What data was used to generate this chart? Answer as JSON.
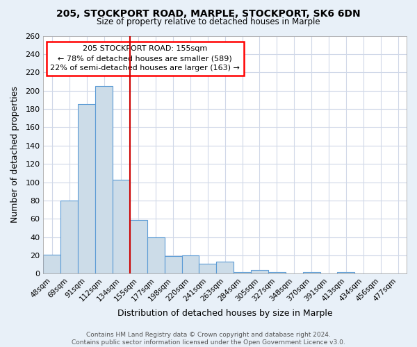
{
  "title1": "205, STOCKPORT ROAD, MARPLE, STOCKPORT, SK6 6DN",
  "title2": "Size of property relative to detached houses in Marple",
  "xlabel": "Distribution of detached houses by size in Marple",
  "ylabel": "Number of detached properties",
  "footer1": "Contains HM Land Registry data © Crown copyright and database right 2024.",
  "footer2": "Contains public sector information licensed under the Open Government Licence v3.0.",
  "bar_labels": [
    "48sqm",
    "69sqm",
    "91sqm",
    "112sqm",
    "134sqm",
    "155sqm",
    "177sqm",
    "198sqm",
    "220sqm",
    "241sqm",
    "263sqm",
    "284sqm",
    "305sqm",
    "327sqm",
    "348sqm",
    "370sqm",
    "391sqm",
    "413sqm",
    "434sqm",
    "456sqm",
    "477sqm"
  ],
  "bar_values": [
    21,
    80,
    185,
    205,
    103,
    59,
    40,
    19,
    20,
    11,
    13,
    2,
    4,
    2,
    0,
    2,
    0,
    2,
    0,
    0,
    0
  ],
  "bar_color": "#ccdce8",
  "bar_edgecolor": "#5b9bd5",
  "bg_color": "#e8f0f8",
  "plot_bg_color": "#ffffff",
  "grid_color": "#d0d8e8",
  "vline_color": "#cc0000",
  "vline_index": 5,
  "annotation_text": "205 STOCKPORT ROAD: 155sqm\n← 78% of detached houses are smaller (589)\n22% of semi-detached houses are larger (163) →",
  "annotation_box_facecolor": "white",
  "annotation_box_edgecolor": "red",
  "ylim": [
    0,
    260
  ],
  "yticks": [
    0,
    20,
    40,
    60,
    80,
    100,
    120,
    140,
    160,
    180,
    200,
    220,
    240,
    260
  ]
}
